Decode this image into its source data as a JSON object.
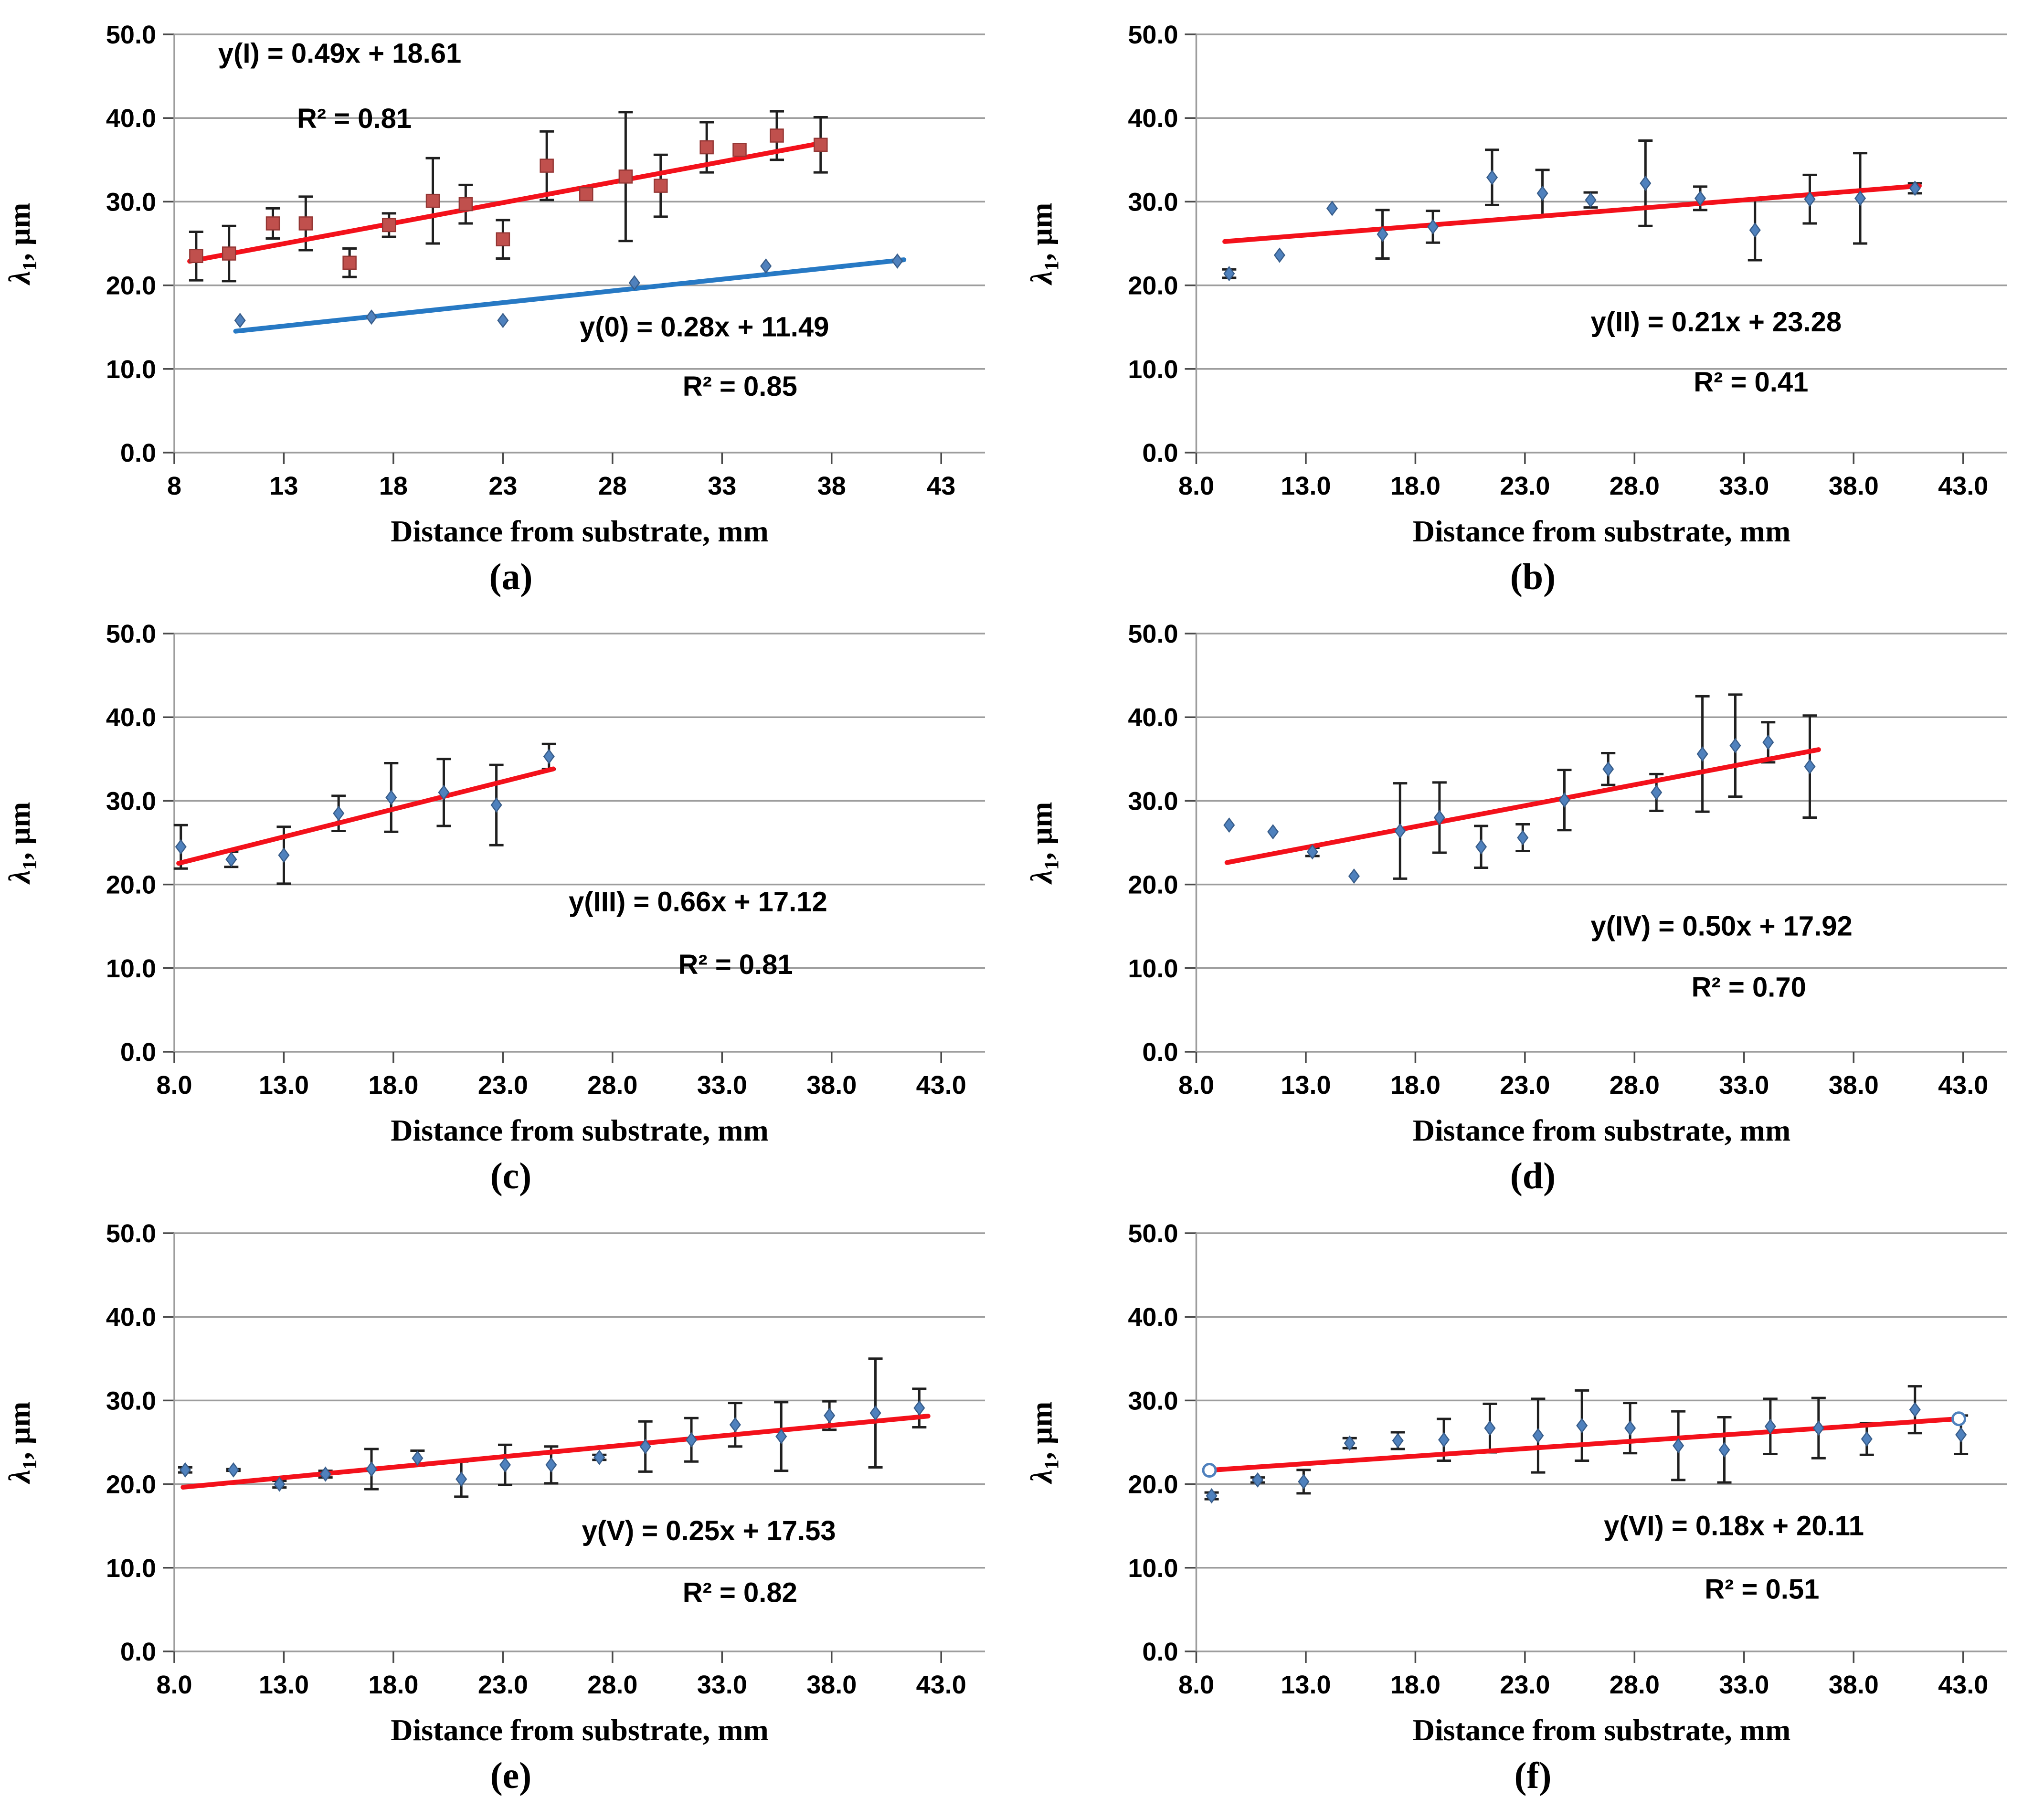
{
  "figure": {
    "x_axis_title": "Distance from substrate, mm",
    "y_axis_title": {
      "lambda": "λ",
      "sub": "1",
      "rest": ", μm"
    },
    "x_range": [
      8,
      45
    ],
    "y_range": [
      0,
      50
    ],
    "x_tick_values": [
      8,
      13,
      18,
      23,
      28,
      33,
      38,
      43
    ],
    "y_tick_values": [
      0,
      10,
      20,
      30,
      40,
      50
    ],
    "y_tick_labels": [
      "0.0",
      "10.0",
      "20.0",
      "30.0",
      "40.0",
      "50.0"
    ],
    "colors": {
      "grid": "#9d9d9d",
      "axis": "#9d9d9d",
      "tick": "#4a4a4a",
      "text": "#000000",
      "error_bar": "#1f1f1f",
      "red_trend": "#f3111b",
      "blue_trend": "#2779c4",
      "square_fill": "#c0504d",
      "square_edge": "#943634",
      "diamond_fill": "#4f81bd",
      "diamond_edge": "#385d8a",
      "open_circle_edge": "#4f81bd"
    }
  },
  "chart_data": [
    {
      "id": "a",
      "type": "scatter",
      "caption": "(a)",
      "x_tick_labels": [
        "8",
        "13",
        "18",
        "23",
        "28",
        "33",
        "38",
        "43"
      ],
      "series": [
        {
          "name": "I",
          "marker": "square",
          "x": [
            9.0,
            10.5,
            12.5,
            14.0,
            16.0,
            17.8,
            19.8,
            21.3,
            23.0,
            25.0,
            26.8,
            28.6,
            30.2,
            32.3,
            33.8,
            35.5,
            37.5
          ],
          "y": [
            23.5,
            23.8,
            27.4,
            27.4,
            22.7,
            27.2,
            30.1,
            29.7,
            25.5,
            34.3,
            30.9,
            33.0,
            31.9,
            36.5,
            36.2,
            37.9,
            36.8
          ],
          "err": [
            2.9,
            3.3,
            1.8,
            3.2,
            1.7,
            1.4,
            5.1,
            2.3,
            2.3,
            4.1,
            0,
            7.7,
            3.7,
            3.0,
            0,
            2.9,
            3.3
          ]
        },
        {
          "name": "0",
          "marker": "diamond",
          "x": [
            11.0,
            17.0,
            23.0,
            29.0,
            35.0,
            41.0
          ],
          "y": [
            15.8,
            16.2,
            15.8,
            20.3,
            22.3,
            22.9
          ],
          "err": [
            0,
            0,
            0,
            0,
            0,
            0
          ]
        }
      ],
      "trends": [
        {
          "name": "I",
          "color_key": "red_trend",
          "slope": 0.49,
          "intercept": 18.61,
          "x_start": 8.7,
          "x_end": 37.6,
          "endpoint_markers": false
        },
        {
          "name": "0",
          "color_key": "blue_trend",
          "slope": 0.28,
          "intercept": 11.49,
          "x_start": 10.8,
          "x_end": 41.3,
          "endpoint_markers": false
        }
      ],
      "annotations": [
        {
          "text": "y(I) = 0.49x + 18.61",
          "x": 10.0,
          "y": 46.6
        },
        {
          "text": "R² = 0.81",
          "x": 13.6,
          "y": 38.8
        },
        {
          "text": "y(0) = 0.28x + 11.49",
          "x": 26.5,
          "y": 13.9
        },
        {
          "text": "R² = 0.85",
          "x": 31.2,
          "y": 6.8
        }
      ]
    },
    {
      "id": "b",
      "type": "scatter",
      "caption": "(b)",
      "x_tick_labels": [
        "8.0",
        "13.0",
        "18.0",
        "23.0",
        "28.0",
        "33.0",
        "38.0",
        "43.0"
      ],
      "series": [
        {
          "name": "II",
          "marker": "diamond",
          "x": [
            9.5,
            11.8,
            14.2,
            16.5,
            18.8,
            21.5,
            23.8,
            26.0,
            28.5,
            31.0,
            33.5,
            36.0,
            38.3,
            40.8
          ],
          "y": [
            21.4,
            23.6,
            29.2,
            26.1,
            27.0,
            32.9,
            31.0,
            30.2,
            32.2,
            30.4,
            26.6,
            30.3,
            30.4,
            31.6
          ],
          "err": [
            0.5,
            0,
            0,
            2.9,
            1.9,
            3.3,
            2.8,
            0.9,
            5.1,
            1.4,
            3.6,
            2.9,
            5.4,
            0.6
          ]
        }
      ],
      "trends": [
        {
          "name": "II",
          "color_key": "red_trend",
          "slope": 0.21,
          "intercept": 23.28,
          "x_start": 9.3,
          "x_end": 41.0,
          "endpoint_markers": false
        }
      ],
      "annotations": [
        {
          "text": "y(II) = 0.21x + 23.28",
          "x": 26.0,
          "y": 14.5
        },
        {
          "text": "R² = 0.41",
          "x": 30.7,
          "y": 7.3
        }
      ]
    },
    {
      "id": "c",
      "type": "scatter",
      "caption": "(c)",
      "x_tick_labels": [
        "8.0",
        "13.0",
        "18.0",
        "23.0",
        "28.0",
        "33.0",
        "38.0",
        "43.0"
      ],
      "series": [
        {
          "name": "III",
          "marker": "diamond",
          "x": [
            8.3,
            10.6,
            13.0,
            15.5,
            17.9,
            20.3,
            22.7,
            25.1
          ],
          "y": [
            24.5,
            23.0,
            23.5,
            28.5,
            30.4,
            31.0,
            29.5,
            35.3
          ],
          "err": [
            2.6,
            0.9,
            3.4,
            2.1,
            4.1,
            4.0,
            4.8,
            1.5
          ]
        }
      ],
      "trends": [
        {
          "name": "III",
          "color_key": "red_trend",
          "slope": 0.66,
          "intercept": 17.12,
          "x_start": 8.2,
          "x_end": 25.3,
          "endpoint_markers": false
        }
      ],
      "annotations": [
        {
          "text": "y(III) = 0.66x + 17.12",
          "x": 26.0,
          "y": 16.8
        },
        {
          "text": "R² = 0.81",
          "x": 31.0,
          "y": 9.3
        }
      ]
    },
    {
      "id": "d",
      "type": "scatter",
      "caption": "(d)",
      "x_tick_labels": [
        "8.0",
        "13.0",
        "18.0",
        "23.0",
        "28.0",
        "33.0",
        "38.0",
        "43.0"
      ],
      "series": [
        {
          "name": "IV",
          "marker": "diamond",
          "x": [
            9.5,
            11.5,
            13.3,
            15.2,
            17.3,
            19.1,
            21.0,
            22.9,
            24.8,
            26.8,
            29.0,
            31.1,
            32.6,
            34.1,
            36.0
          ],
          "y": [
            27.1,
            26.3,
            23.9,
            21.0,
            26.4,
            28.0,
            24.5,
            25.6,
            30.1,
            33.8,
            31.0,
            35.6,
            36.6,
            37.0,
            34.1
          ],
          "err": [
            0,
            0,
            0.5,
            0,
            5.7,
            4.2,
            2.5,
            1.6,
            3.6,
            1.9,
            2.2,
            6.9,
            6.1,
            2.4,
            6.1
          ]
        }
      ],
      "trends": [
        {
          "name": "IV",
          "color_key": "red_trend",
          "slope": 0.5,
          "intercept": 17.92,
          "x_start": 9.4,
          "x_end": 36.4,
          "endpoint_markers": false
        }
      ],
      "annotations": [
        {
          "text": "y(IV) = 0.50x + 17.92",
          "x": 26.0,
          "y": 13.9
        },
        {
          "text": "R² = 0.70",
          "x": 30.6,
          "y": 6.6
        }
      ]
    },
    {
      "id": "e",
      "type": "scatter",
      "caption": "(e)",
      "x_tick_labels": [
        "8.0",
        "13.0",
        "18.0",
        "23.0",
        "28.0",
        "33.0",
        "38.0",
        "43.0"
      ],
      "series": [
        {
          "name": "V",
          "marker": "diamond",
          "x": [
            8.5,
            10.7,
            12.8,
            14.9,
            17.0,
            19.1,
            21.1,
            23.1,
            25.2,
            27.4,
            29.5,
            31.6,
            33.6,
            35.7,
            37.9,
            40.0,
            42.0
          ],
          "y": [
            21.7,
            21.7,
            20.0,
            21.2,
            21.8,
            23.1,
            20.6,
            22.3,
            22.3,
            23.2,
            24.5,
            25.3,
            27.1,
            25.7,
            28.2,
            28.5,
            29.1
          ],
          "err": [
            0.3,
            0.1,
            0.4,
            0.4,
            2.4,
            0.9,
            2.1,
            2.4,
            2.2,
            0.3,
            3.0,
            2.6,
            2.6,
            4.1,
            1.7,
            6.5,
            2.3
          ]
        }
      ],
      "trends": [
        {
          "name": "V",
          "color_key": "red_trend",
          "slope": 0.25,
          "intercept": 17.53,
          "x_start": 8.4,
          "x_end": 42.4,
          "endpoint_markers": false
        }
      ],
      "annotations": [
        {
          "text": "y(V) = 0.25x + 17.53",
          "x": 26.6,
          "y": 13.3
        },
        {
          "text": "R² = 0.82",
          "x": 31.2,
          "y": 5.9
        }
      ]
    },
    {
      "id": "f",
      "type": "scatter",
      "caption": "(f)",
      "x_tick_labels": [
        "8.0",
        "13.0",
        "18.0",
        "23.0",
        "28.0",
        "33.0",
        "38.0",
        "43.0"
      ],
      "series": [
        {
          "name": "VI",
          "marker": "diamond",
          "x": [
            8.7,
            10.8,
            12.9,
            15.0,
            17.2,
            19.3,
            21.4,
            23.6,
            25.6,
            27.8,
            30.0,
            32.1,
            34.2,
            36.4,
            38.6,
            40.8,
            42.9
          ],
          "y": [
            18.6,
            20.5,
            20.3,
            24.9,
            25.2,
            25.3,
            26.7,
            25.8,
            27.0,
            26.7,
            24.6,
            24.1,
            26.9,
            26.7,
            25.4,
            28.9,
            25.9
          ],
          "err": [
            0.4,
            0.3,
            1.4,
            0.6,
            1.0,
            2.5,
            2.9,
            4.4,
            4.2,
            3.0,
            4.1,
            3.9,
            3.3,
            3.6,
            1.9,
            2.8,
            2.3
          ]
        }
      ],
      "trends": [
        {
          "name": "VI",
          "color_key": "red_trend",
          "slope": 0.18,
          "intercept": 20.11,
          "x_start": 8.6,
          "x_end": 42.8,
          "endpoint_markers": true
        }
      ],
      "annotations": [
        {
          "text": "y(VI) = 0.18x + 20.11",
          "x": 26.6,
          "y": 13.9
        },
        {
          "text": "R² = 0.51",
          "x": 31.2,
          "y": 6.3
        }
      ]
    }
  ]
}
